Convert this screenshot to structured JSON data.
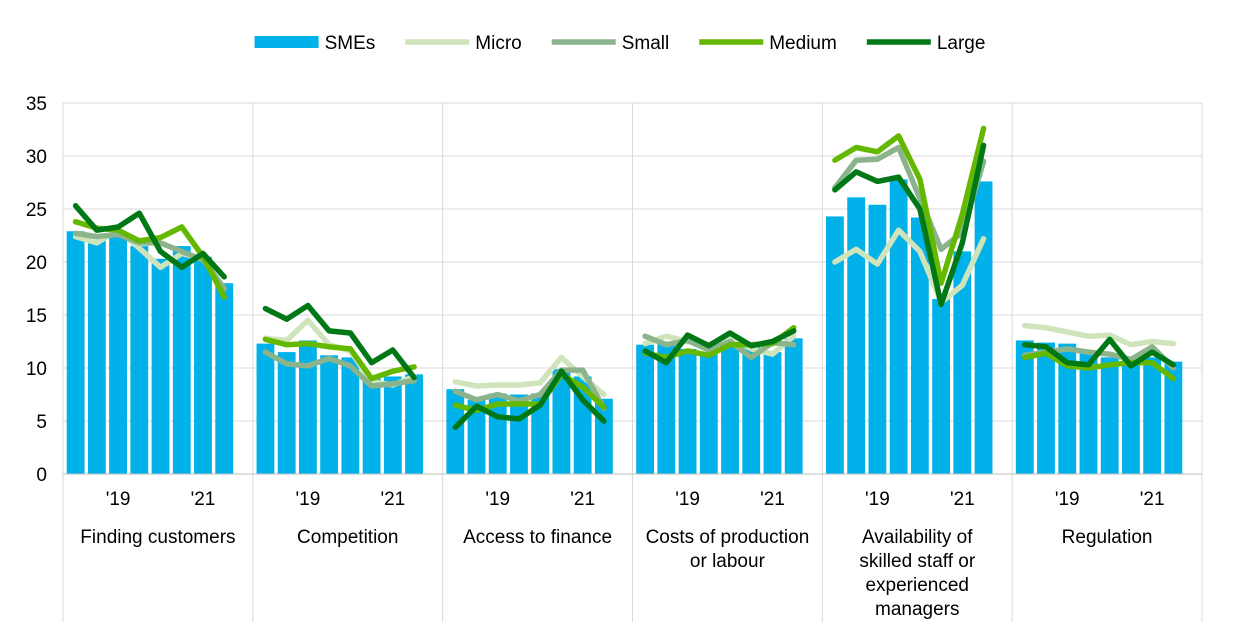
{
  "chart_data": {
    "type": "bar",
    "ylim": [
      0,
      35
    ],
    "yticks": [
      0,
      5,
      10,
      15,
      20,
      25,
      30,
      35
    ],
    "grid": true,
    "legend_position": "top",
    "panels": [
      {
        "label": "Finding customers",
        "ticks": [
          "'19",
          "'21"
        ]
      },
      {
        "label": "Competition",
        "ticks": [
          "'19",
          "'21"
        ]
      },
      {
        "label": "Access to finance",
        "ticks": [
          "'19",
          "'21"
        ]
      },
      {
        "label": "Costs of production or labour",
        "label_lines": [
          "Costs of production",
          "or labour"
        ],
        "ticks": [
          "'19",
          "'21"
        ]
      },
      {
        "label": "Availability of skilled staff or experienced managers",
        "label_lines": [
          "Availability of",
          "skilled staff or",
          "experienced",
          "managers"
        ],
        "ticks": [
          "'19",
          "'21"
        ]
      },
      {
        "label": "Regulation",
        "ticks": [
          "'19",
          "'21"
        ]
      }
    ],
    "series": [
      {
        "name": "SMEs",
        "kind": "bar",
        "color": "#00b1ea",
        "values": [
          [
            22.9,
            22.0,
            22.8,
            21.5,
            20.3,
            21.5,
            20.5,
            18.0
          ],
          [
            12.3,
            11.5,
            12.6,
            11.2,
            11.0,
            9.0,
            9.2,
            9.4
          ],
          [
            8.0,
            7.0,
            7.6,
            7.5,
            7.6,
            9.9,
            9.2,
            7.1
          ],
          [
            12.2,
            12.5,
            11.8,
            11.3,
            12.3,
            12.0,
            11.5,
            12.8
          ],
          [
            24.3,
            26.1,
            25.4,
            27.8,
            24.2,
            16.5,
            21.0,
            27.6
          ],
          [
            12.6,
            12.4,
            12.3,
            11.5,
            11.0,
            11.0,
            11.0,
            10.6
          ]
        ]
      },
      {
        "name": "Micro",
        "kind": "line",
        "color": "#cfe4bb",
        "values": [
          [
            22.4,
            21.8,
            23.0,
            21.3,
            19.5,
            20.8,
            20.3,
            17.5
          ],
          [
            12.8,
            12.6,
            14.5,
            12.2,
            11.6,
            8.7,
            8.4,
            9.2
          ],
          [
            8.7,
            8.3,
            8.4,
            8.4,
            8.6,
            11.0,
            9.2,
            7.5
          ],
          [
            12.3,
            13.0,
            12.5,
            12.2,
            12.8,
            11.8,
            11.3,
            13.0
          ],
          [
            20.0,
            21.2,
            19.8,
            23.0,
            21.0,
            16.2,
            17.8,
            22.2
          ],
          [
            14.0,
            13.8,
            13.4,
            13.0,
            13.1,
            12.2,
            12.5,
            12.3
          ]
        ]
      },
      {
        "name": "Small",
        "kind": "line",
        "color": "#8cb48c",
        "values": [
          [
            22.7,
            22.4,
            22.6,
            21.8,
            21.8,
            21.0,
            20.2,
            17.5
          ],
          [
            11.5,
            10.4,
            10.2,
            10.9,
            10.2,
            8.3,
            8.5,
            8.8
          ],
          [
            7.8,
            7.0,
            7.5,
            6.9,
            7.5,
            9.8,
            9.8,
            6.2
          ],
          [
            13.0,
            12.2,
            12.6,
            11.7,
            12.5,
            11.0,
            12.4,
            12.2
          ],
          [
            27.0,
            29.6,
            29.7,
            30.8,
            26.0,
            21.2,
            22.8,
            29.5
          ],
          [
            11.2,
            11.5,
            11.8,
            11.5,
            11.3,
            10.8,
            12.0,
            10.0
          ]
        ]
      },
      {
        "name": "Medium",
        "kind": "line",
        "color": "#65b800",
        "values": [
          [
            23.8,
            23.2,
            23.0,
            22.0,
            22.3,
            23.3,
            20.5,
            16.7
          ],
          [
            12.7,
            12.2,
            12.3,
            12.0,
            11.8,
            9.0,
            9.7,
            10.1
          ],
          [
            6.5,
            6.0,
            6.6,
            6.6,
            6.6,
            9.4,
            8.2,
            6.3
          ],
          [
            11.4,
            11.0,
            11.6,
            11.2,
            12.2,
            12.2,
            12.3,
            13.8
          ],
          [
            29.6,
            30.8,
            30.4,
            31.9,
            27.8,
            18.0,
            24.5,
            32.6
          ],
          [
            11.0,
            11.4,
            10.2,
            10.0,
            10.3,
            10.5,
            10.5,
            9.0
          ]
        ]
      },
      {
        "name": "Large",
        "kind": "line",
        "color": "#007816",
        "values": [
          [
            25.3,
            23.0,
            23.3,
            24.6,
            21.0,
            19.5,
            20.8,
            18.6
          ],
          [
            15.6,
            14.6,
            15.9,
            13.5,
            13.3,
            10.5,
            11.7,
            9.1
          ],
          [
            4.4,
            6.4,
            5.4,
            5.2,
            6.5,
            9.7,
            7.0,
            5.0
          ],
          [
            11.6,
            10.5,
            13.1,
            12.1,
            13.3,
            12.1,
            12.5,
            13.5
          ],
          [
            26.8,
            28.5,
            27.6,
            28.0,
            25.0,
            16.0,
            21.8,
            31.0
          ],
          [
            12.2,
            12.0,
            10.5,
            10.3,
            12.7,
            10.2,
            11.5,
            10.3
          ]
        ]
      }
    ]
  }
}
